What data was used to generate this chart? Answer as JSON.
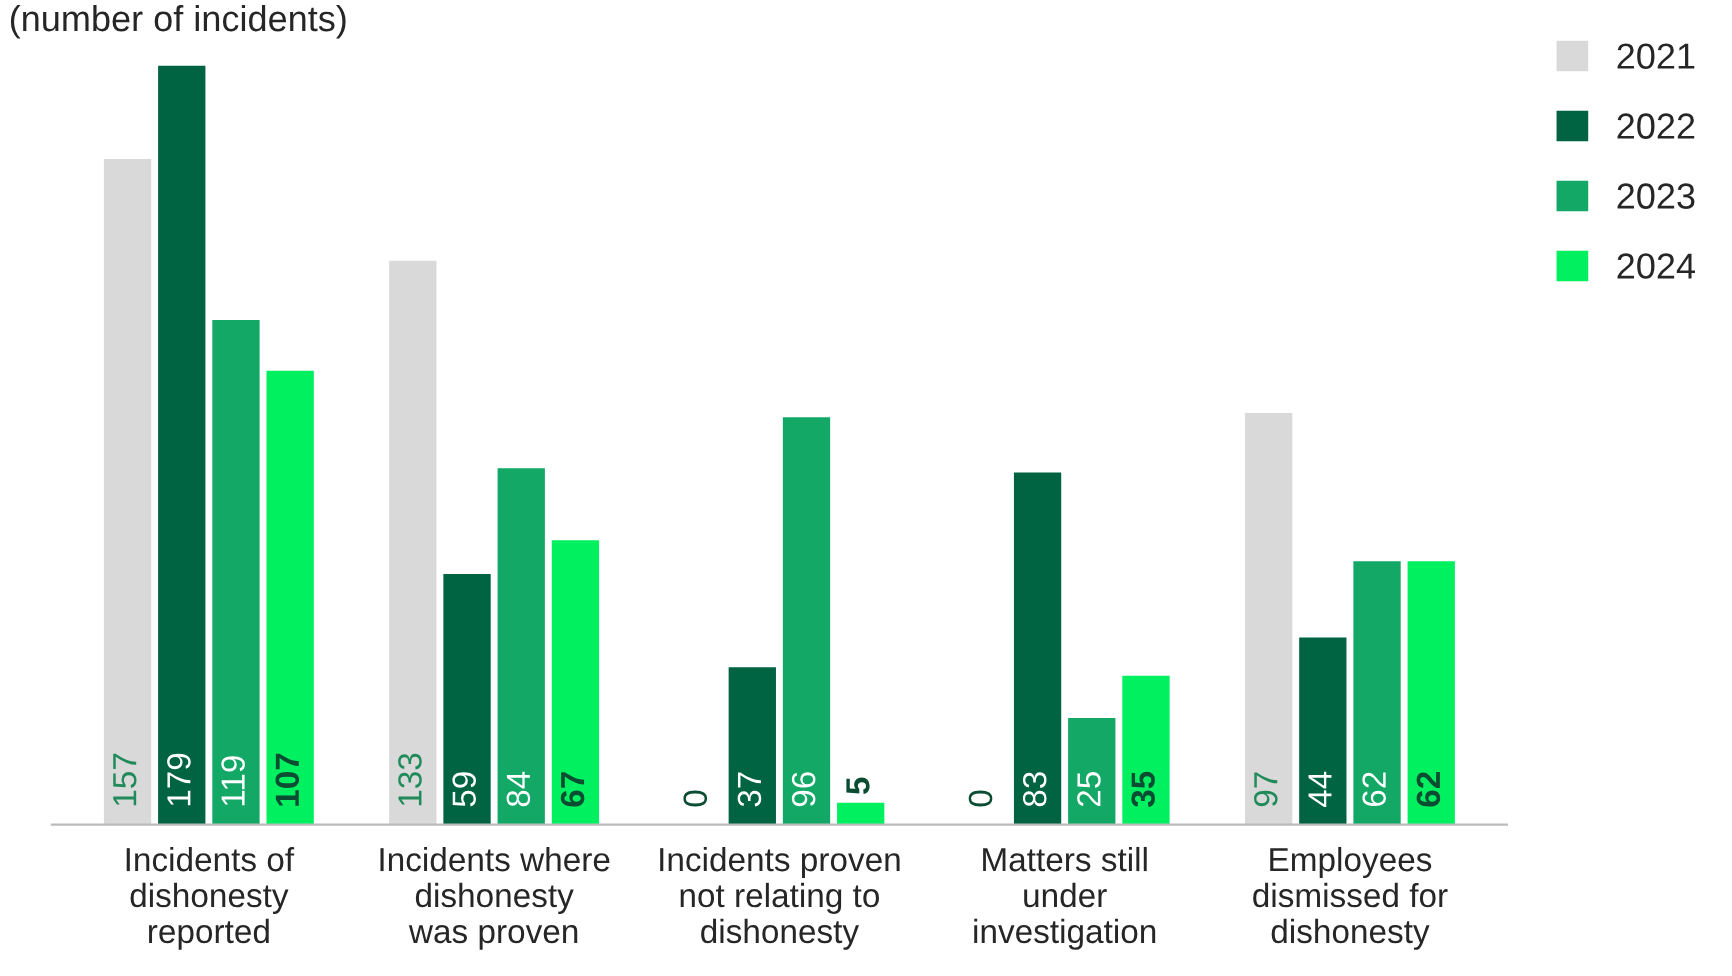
{
  "chart_data": {
    "type": "bar",
    "title": "(number of incidents)",
    "categories": [
      "Incidents of\ndishonesty\nreported",
      "Incidents where\ndishonesty\nwas proven",
      "Incidents proven\nnot relating to\ndishonesty",
      "Matters still\nunder\ninvestigation",
      "Employees\ndismissed for\ndishonesty"
    ],
    "series": [
      {
        "name": "2021",
        "color": "#d9d9d9",
        "values": [
          157,
          133,
          0,
          0,
          97
        ]
      },
      {
        "name": "2022",
        "color": "#006341",
        "values": [
          179,
          59,
          37,
          83,
          44
        ]
      },
      {
        "name": "2023",
        "color": "#13a866",
        "values": [
          119,
          84,
          96,
          25,
          62
        ]
      },
      {
        "name": "2024",
        "color": "#00f060",
        "values": [
          107,
          67,
          5,
          35,
          62
        ]
      }
    ],
    "data_labels": true,
    "legend": "top right",
    "grid": false
  }
}
